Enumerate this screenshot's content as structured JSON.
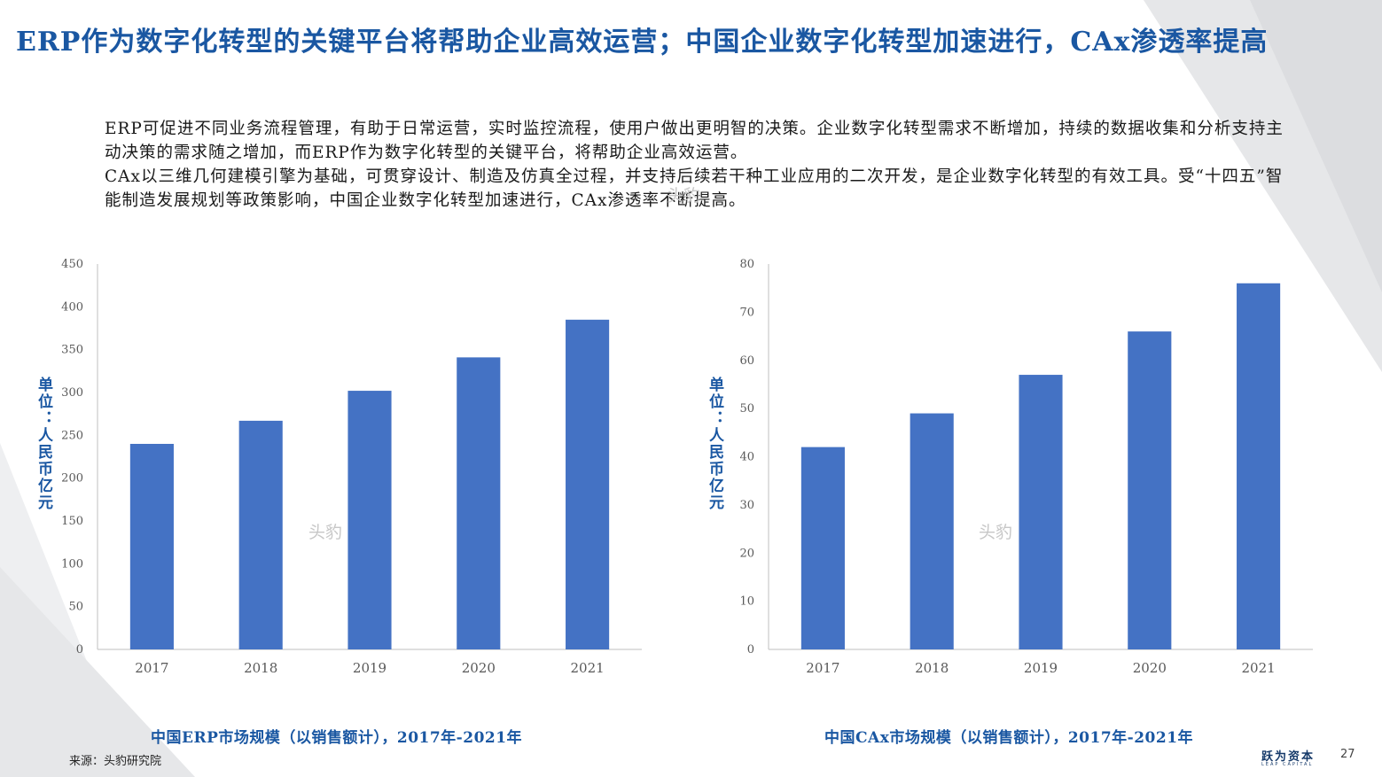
{
  "slide": {
    "title": "ERP作为数字化转型的关键平台将帮助企业高效运营；中国企业数字化转型加速进行，CAx渗透率提高",
    "paragraph1": "ERP可促进不同业务流程管理，有助于日常运营，实时监控流程，使用户做出更明智的决策。企业数字化转型需求不断增加，持续的数据收集和分析支持主动决策的需求随之增加，而ERP作为数字化转型的关键平台，将帮助企业高效运营。",
    "paragraph2": "CAx以三维几何建模引擎为基础，可贯穿设计、制造及仿真全过程，并支持后续若干种工业应用的二次开发，是企业数字化转型的有效工具。受“十四五”智能制造发展规划等政策影响，中国企业数字化转型加速进行，CAx渗透率不断提高。",
    "watermark": "头豹",
    "source": "来源：头豹研究院",
    "logo_text": "跃为资本",
    "logo_subtext": "LEAP CAPITAL",
    "page_number": "27",
    "colors": {
      "accent": "#1a57a2",
      "bar": "#4472c4",
      "axis": "#bfbfbf",
      "background_shape": "#e6e7e9"
    }
  },
  "chart_data": [
    {
      "type": "bar",
      "categories": [
        "2017",
        "2018",
        "2019",
        "2020",
        "2021"
      ],
      "values": [
        240,
        267,
        302,
        341,
        385
      ],
      "ylabel": "单位：人民币亿元",
      "ylim": [
        0,
        450
      ],
      "yticks": [
        "0",
        "50",
        "100",
        "150",
        "200",
        "250",
        "300",
        "350",
        "400",
        "450"
      ],
      "caption": "中国ERP市场规模（以销售额计），2017年-2021年",
      "grid": false,
      "legend": "none"
    },
    {
      "type": "bar",
      "categories": [
        "2017",
        "2018",
        "2019",
        "2020",
        "2021"
      ],
      "values": [
        42,
        49,
        57,
        66,
        76
      ],
      "ylabel": "单位：人民币亿元",
      "ylim": [
        0,
        80
      ],
      "yticks": [
        "0",
        "10",
        "20",
        "30",
        "40",
        "50",
        "60",
        "70",
        "80"
      ],
      "caption": "中国CAx市场规模（以销售额计），2017年-2021年",
      "grid": false,
      "legend": "none"
    }
  ]
}
